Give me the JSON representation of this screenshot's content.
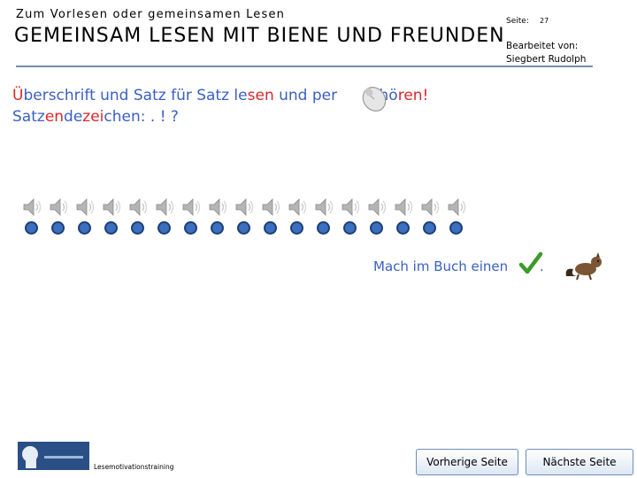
{
  "header": {
    "subtitle": "Zum Vorlesen oder gemeinsamen Lesen",
    "title": "GEMEINSAM LESEN MIT BIENE UND FREUNDEN",
    "page_label": "Seite:",
    "page_number": "27",
    "editor_label": "Bearbeitet von:",
    "editor_name": "Siegbert Rudolph",
    "accent_color": "#6f8fb5"
  },
  "instruction": {
    "line1_parts": [
      "Ü",
      "berschrift und Satz für Satz le",
      "sen",
      " und per ",
      "hö",
      "ren!"
    ],
    "line2_parts": [
      "Satz",
      "en",
      "de",
      "zei",
      "chen:  . ! ?"
    ],
    "blue_color": "#3a5fc4",
    "red_color": "#d9262a",
    "mouse_icon": "mouse-icon"
  },
  "audio_row": {
    "speaker_icon": "speaker-icon",
    "count": 17
  },
  "check_prompt": {
    "text": "Mach im Buch einen",
    "icon": "checkmark-icon",
    "after": "."
  },
  "footer": {
    "label": "Lesemotivationstraining",
    "prev_button": "Vorherige Seite",
    "next_button": "Nächste Seite"
  }
}
